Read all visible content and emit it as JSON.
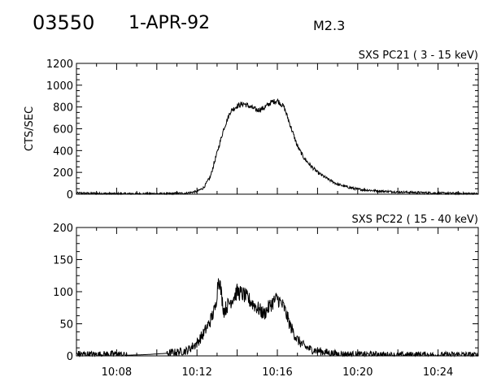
{
  "header": {
    "event_id": "03550",
    "date": "1-APR-92",
    "flare_class": "M2.3"
  },
  "chart_data": [
    {
      "type": "line",
      "title": "SXS PC21  (  3 - 15 keV)",
      "ylabel": "CTS/SEC",
      "xlabel": "",
      "xlim": [
        "10:06",
        "10:26"
      ],
      "ylim": [
        0,
        1200
      ],
      "yticks": [
        0,
        200,
        400,
        600,
        800,
        1000,
        1200
      ],
      "xticks": [
        "10:08",
        "10:12",
        "10:16",
        "10:20",
        "10:24"
      ],
      "series": [
        {
          "x": [
            "10:06:00",
            "10:07:00",
            "10:08:00",
            "10:09:30",
            "10:10:30",
            "10:11:30",
            "10:12:00",
            "10:12:20",
            "10:12:40",
            "10:13:00",
            "10:13:20",
            "10:13:40",
            "10:14:00",
            "10:14:20",
            "10:14:40",
            "10:15:00",
            "10:15:20",
            "10:15:40",
            "10:16:00",
            "10:16:20",
            "10:16:40",
            "10:17:00",
            "10:17:20",
            "10:17:40",
            "10:18:00",
            "10:18:30",
            "10:19:00",
            "10:19:30",
            "10:20:00",
            "10:21:00",
            "10:22:00",
            "10:23:00",
            "10:24:00",
            "10:25:00",
            "10:26:00"
          ],
          "values": [
            10,
            8,
            5,
            5,
            5,
            10,
            25,
            60,
            160,
            380,
            600,
            760,
            810,
            830,
            800,
            770,
            790,
            840,
            860,
            800,
            620,
            440,
            330,
            260,
            200,
            140,
            90,
            65,
            45,
            30,
            20,
            15,
            10,
            8,
            5
          ]
        }
      ]
    },
    {
      "type": "line",
      "title": "SXS PC22  ( 15 - 40 keV)",
      "ylabel": "",
      "xlabel": "",
      "xlim": [
        "10:06",
        "10:26"
      ],
      "ylim": [
        0,
        200
      ],
      "yticks": [
        0,
        50,
        100,
        150,
        200
      ],
      "xticks": [
        "10:08",
        "10:12",
        "10:16",
        "10:20",
        "10:24"
      ],
      "series": [
        {
          "x": [
            "10:06:00",
            "10:07:00",
            "10:08:00",
            "10:08:30",
            "10:09:30",
            "10:10:30",
            "10:11:00",
            "10:11:30",
            "10:12:00",
            "10:12:20",
            "10:12:40",
            "10:12:55",
            "10:13:05",
            "10:13:20",
            "10:13:40",
            "10:14:00",
            "10:14:20",
            "10:14:40",
            "10:15:00",
            "10:15:20",
            "10:15:40",
            "10:16:00",
            "10:16:20",
            "10:16:40",
            "10:17:00",
            "10:17:20",
            "10:17:40",
            "10:18:00",
            "10:18:30",
            "10:19:00",
            "10:20:00",
            "10:21:00",
            "10:22:00",
            "10:23:00",
            "10:24:00",
            "10:25:00",
            "10:26:00"
          ],
          "values": [
            3,
            2,
            3,
            1,
            2,
            4,
            6,
            8,
            20,
            35,
            55,
            75,
            125,
            70,
            85,
            100,
            95,
            85,
            75,
            65,
            80,
            90,
            75,
            45,
            25,
            15,
            10,
            8,
            5,
            3,
            2,
            2,
            1,
            2,
            1,
            2,
            1
          ]
        }
      ]
    }
  ]
}
